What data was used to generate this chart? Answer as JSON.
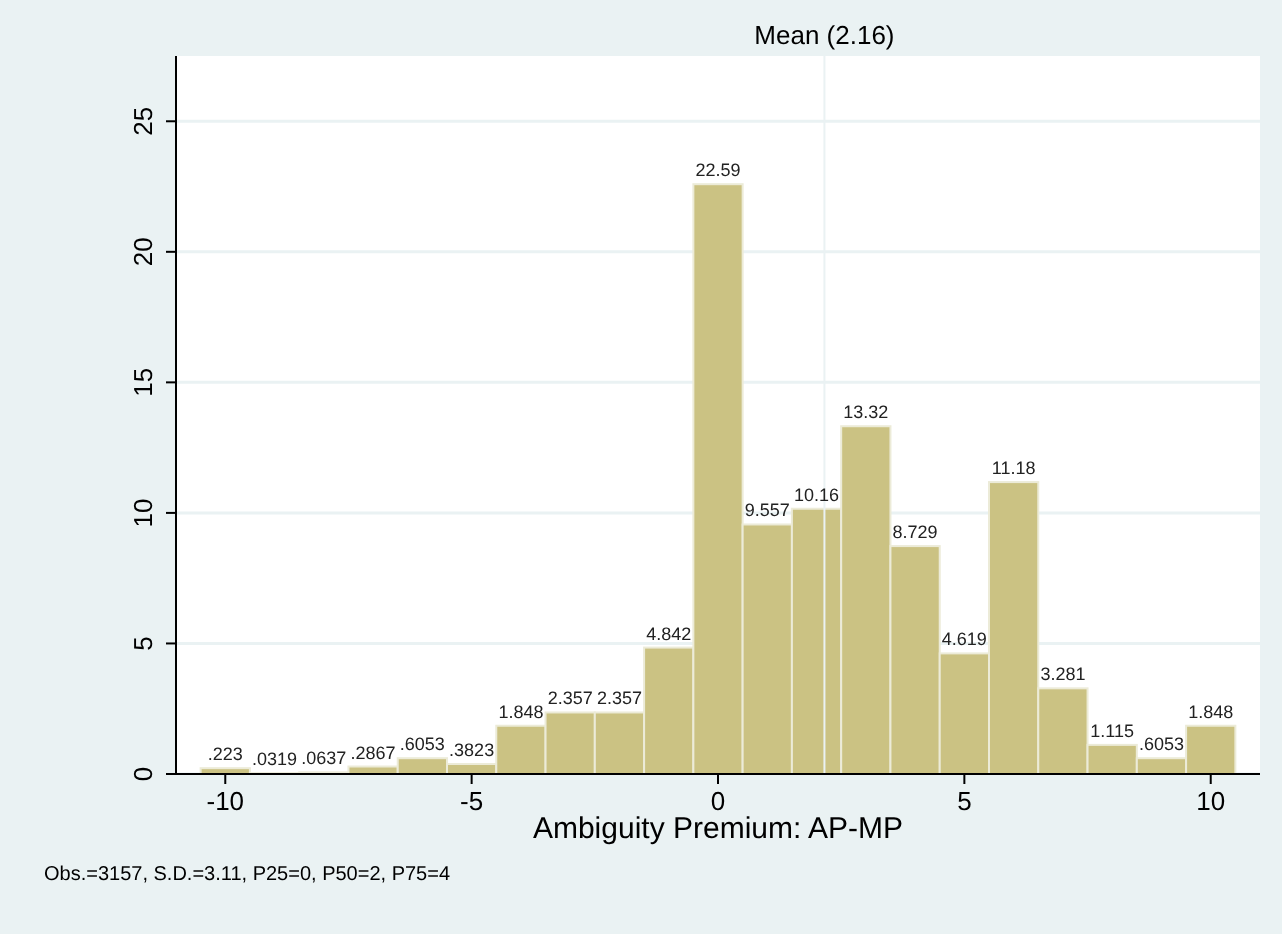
{
  "chart_data": {
    "type": "histogram",
    "xlabel": "Ambiguity Premium: AP-MP",
    "annotations": [
      "Obs.=3157, S.D.=3.11, P25=0, P50=2, P75=4"
    ],
    "bins": [
      -10.5,
      -9.5,
      -8.5,
      -7.5,
      -6.5,
      -5.5,
      -4.5,
      -3.5,
      -2.5,
      -1.5,
      -0.5,
      0.5,
      1.5,
      2.5,
      3.5,
      4.5,
      5.5,
      6.5,
      7.5,
      8.5,
      9.5,
      10.5
    ],
    "values": [
      0.223,
      0.0319,
      0.0637,
      0.2867,
      0.6053,
      0.3823,
      1.848,
      2.357,
      2.357,
      4.842,
      22.59,
      9.557,
      10.16,
      13.32,
      8.729,
      4.619,
      11.18,
      3.281,
      1.115,
      0.6053,
      1.848
    ],
    "value_labels": [
      ".223",
      ".0319",
      ".0637",
      ".2867",
      ".6053",
      ".3823",
      "1.848",
      "2.357",
      "2.357",
      "4.842",
      "22.59",
      "9.557",
      "10.16",
      "13.32",
      "8.729",
      "4.619",
      "11.18",
      "3.281",
      "1.115",
      ".6053",
      "1.848"
    ],
    "color": "#cbc283",
    "xlim": [
      -11,
      11
    ],
    "xticks": [
      -10,
      -5,
      0,
      5,
      10
    ],
    "ylim": [
      0,
      27.5
    ],
    "yticks": [
      0,
      5,
      10,
      15,
      20,
      25
    ],
    "grid": "y",
    "ref_lines": [
      {
        "axis": "x",
        "value": 2.16,
        "label": "Mean (2.16)"
      }
    ]
  }
}
